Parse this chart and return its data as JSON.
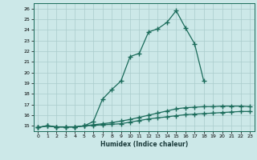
{
  "xlabel": "Humidex (Indice chaleur)",
  "bg_color": "#cce8e8",
  "grid_color": "#aacccc",
  "line_color": "#1a6b5a",
  "xlim": [
    -0.5,
    23.5
  ],
  "ylim": [
    14.5,
    26.5
  ],
  "yticks": [
    15,
    16,
    17,
    18,
    19,
    20,
    21,
    22,
    23,
    24,
    25,
    26
  ],
  "xticks": [
    0,
    1,
    2,
    3,
    4,
    5,
    6,
    7,
    8,
    9,
    10,
    11,
    12,
    13,
    14,
    15,
    16,
    17,
    18,
    19,
    20,
    21,
    22,
    23
  ],
  "series1_x": [
    0,
    1,
    2,
    3,
    4,
    5,
    6,
    7,
    8,
    9,
    10,
    11,
    12,
    13,
    14,
    15,
    16,
    17,
    18,
    19,
    20,
    21,
    22,
    23
  ],
  "series1_y": [
    14.85,
    15.0,
    14.9,
    14.9,
    14.9,
    15.0,
    15.05,
    15.1,
    15.15,
    15.2,
    15.35,
    15.5,
    15.65,
    15.75,
    15.85,
    15.95,
    16.05,
    16.1,
    16.15,
    16.2,
    16.25,
    16.3,
    16.35,
    16.35
  ],
  "series2_x": [
    0,
    1,
    2,
    3,
    4,
    5,
    6,
    7,
    8,
    9,
    10,
    11,
    12,
    13,
    14,
    15,
    16,
    17,
    18,
    19,
    20,
    21,
    22,
    23
  ],
  "series2_y": [
    14.85,
    15.0,
    14.9,
    14.9,
    14.9,
    15.0,
    15.1,
    15.2,
    15.3,
    15.45,
    15.6,
    15.8,
    16.0,
    16.2,
    16.4,
    16.6,
    16.7,
    16.75,
    16.8,
    16.8,
    16.85,
    16.85,
    16.85,
    16.8
  ],
  "series3_x": [
    0,
    1,
    2,
    3,
    4,
    5,
    6,
    7,
    8,
    9,
    10,
    11,
    12,
    13,
    14,
    15,
    16,
    17,
    18,
    19,
    20,
    21,
    22,
    23
  ],
  "series3_y": [
    14.85,
    15.0,
    14.9,
    14.9,
    14.9,
    15.0,
    15.4,
    17.5,
    18.4,
    19.2,
    21.5,
    21.8,
    23.8,
    24.1,
    24.7,
    25.8,
    24.2,
    22.7,
    19.2,
    null,
    null,
    null,
    null,
    null
  ],
  "marker": "+",
  "markersize": 4,
  "linewidth": 0.9
}
